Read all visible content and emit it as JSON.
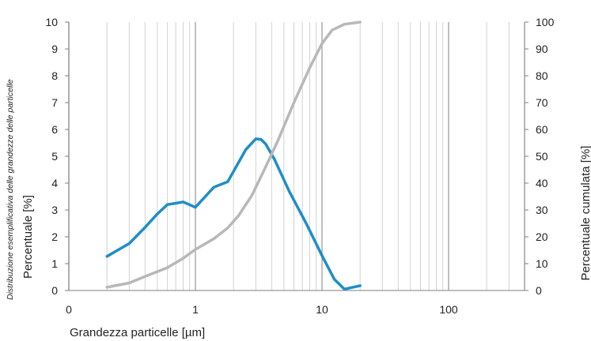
{
  "chart_data": {
    "type": "line",
    "side_note": "Distribuzione esemplificativa delle grandezze delle particelle",
    "xlabel": "Grandezza particelle  [µm]",
    "ylabel": "Percentuale [%]",
    "y2label": "Percentuale cumulata [%]",
    "xscale": "log",
    "xlim": [
      0.1,
      400
    ],
    "ylim": [
      0,
      10
    ],
    "y2lim": [
      0,
      100
    ],
    "x_tick_labels": [
      "0",
      "1",
      "10",
      "100"
    ],
    "y_tick_labels": [
      "0",
      "1",
      "2",
      "3",
      "4",
      "5",
      "6",
      "7",
      "8",
      "9",
      "10"
    ],
    "y2_tick_labels": [
      "0",
      "10",
      "20",
      "30",
      "40",
      "50",
      "60",
      "70",
      "80",
      "90",
      "100"
    ],
    "grid": "vertical",
    "series": [
      {
        "axis": "left",
        "color": "#1f8ec6",
        "points": [
          [
            0.2,
            1.27
          ],
          [
            0.3,
            1.75
          ],
          [
            0.4,
            2.35
          ],
          [
            0.5,
            2.85
          ],
          [
            0.6,
            3.2
          ],
          [
            0.7,
            3.25
          ],
          [
            0.8,
            3.3
          ],
          [
            1.0,
            3.1
          ],
          [
            1.4,
            3.85
          ],
          [
            1.8,
            4.05
          ],
          [
            2.5,
            5.25
          ],
          [
            3.0,
            5.65
          ],
          [
            3.3,
            5.63
          ],
          [
            3.6,
            5.45
          ],
          [
            4.2,
            4.9
          ],
          [
            5.5,
            3.7
          ],
          [
            7.5,
            2.5
          ],
          [
            10.0,
            1.3
          ],
          [
            12.5,
            0.42
          ],
          [
            15.0,
            0.05
          ],
          [
            20.0,
            0.18
          ]
        ]
      },
      {
        "axis": "right",
        "color": "#b8b8b8",
        "points": [
          [
            0.2,
            1.2
          ],
          [
            0.3,
            2.8
          ],
          [
            0.4,
            5.2
          ],
          [
            0.6,
            8.5
          ],
          [
            0.8,
            12.0
          ],
          [
            1.0,
            15.3
          ],
          [
            1.4,
            19.3
          ],
          [
            1.8,
            23.3
          ],
          [
            2.2,
            28.0
          ],
          [
            2.8,
            35.5
          ],
          [
            3.5,
            45.0
          ],
          [
            4.5,
            56.0
          ],
          [
            6.0,
            70.0
          ],
          [
            8.0,
            83.0
          ],
          [
            10.0,
            92.0
          ],
          [
            12.0,
            97.0
          ],
          [
            15.0,
            99.2
          ],
          [
            20.0,
            100.0
          ]
        ]
      }
    ]
  }
}
